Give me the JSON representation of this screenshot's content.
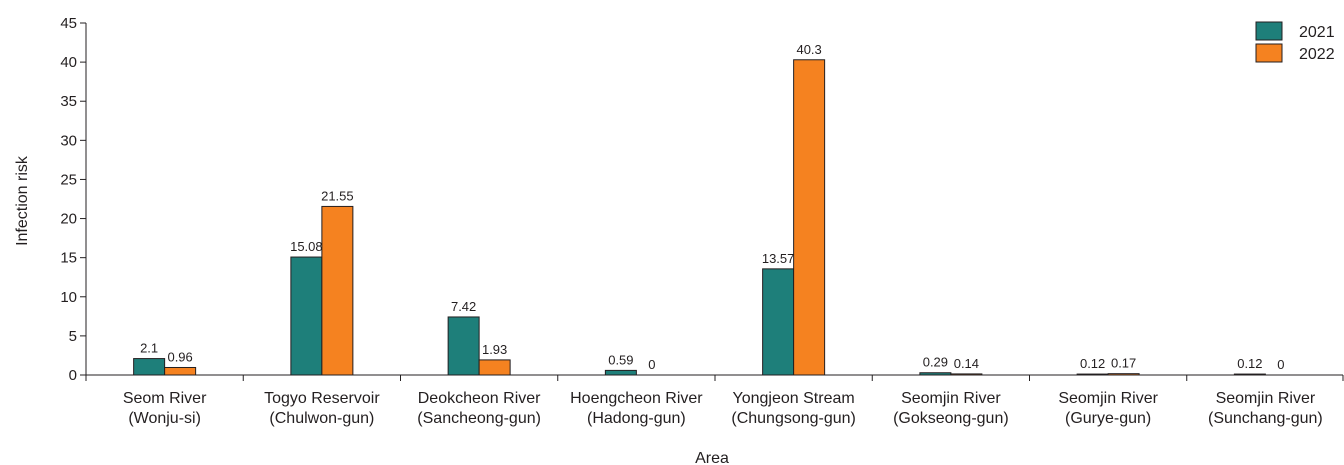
{
  "chart_data": {
    "type": "bar",
    "xlabel": "Area",
    "ylabel": "Infection risk",
    "ylim": [
      0,
      45
    ],
    "yticks": [
      0,
      5,
      10,
      15,
      20,
      25,
      30,
      35,
      40,
      45
    ],
    "grid": false,
    "legend": "top-right",
    "categories": [
      [
        "Seom River",
        "(Wonju-si)"
      ],
      [
        "Togyo Reservoir",
        "(Chulwon-gun)"
      ],
      [
        "Deokcheon River",
        "(Sancheong-gun)"
      ],
      [
        "Hoengcheon River",
        "(Hadong-gun)"
      ],
      [
        "Yongjeon Stream",
        "(Chungsong-gun)"
      ],
      [
        "Seomjin River",
        "(Gokseong-gun)"
      ],
      [
        "Seomjin River",
        "(Gurye-gun)"
      ],
      [
        "Seomjin River",
        "(Sunchang-gun)"
      ]
    ],
    "series": [
      {
        "name": "2021",
        "color": "#1e7f7a",
        "values": [
          2.1,
          15.08,
          7.42,
          0.59,
          13.57,
          0.29,
          0.12,
          0.12
        ],
        "labels": [
          "2.1",
          "15.08",
          "7.42",
          "0.59",
          "13.57",
          "0.29",
          "0.12",
          "0.12"
        ]
      },
      {
        "name": "2022",
        "color": "#f58220",
        "values": [
          0.96,
          21.55,
          1.93,
          0,
          40.3,
          0.14,
          0.17,
          0
        ],
        "labels": [
          "0.96",
          "21.55",
          "1.93",
          "0",
          "40.3",
          "0.14",
          "0.17",
          "0"
        ]
      }
    ]
  }
}
